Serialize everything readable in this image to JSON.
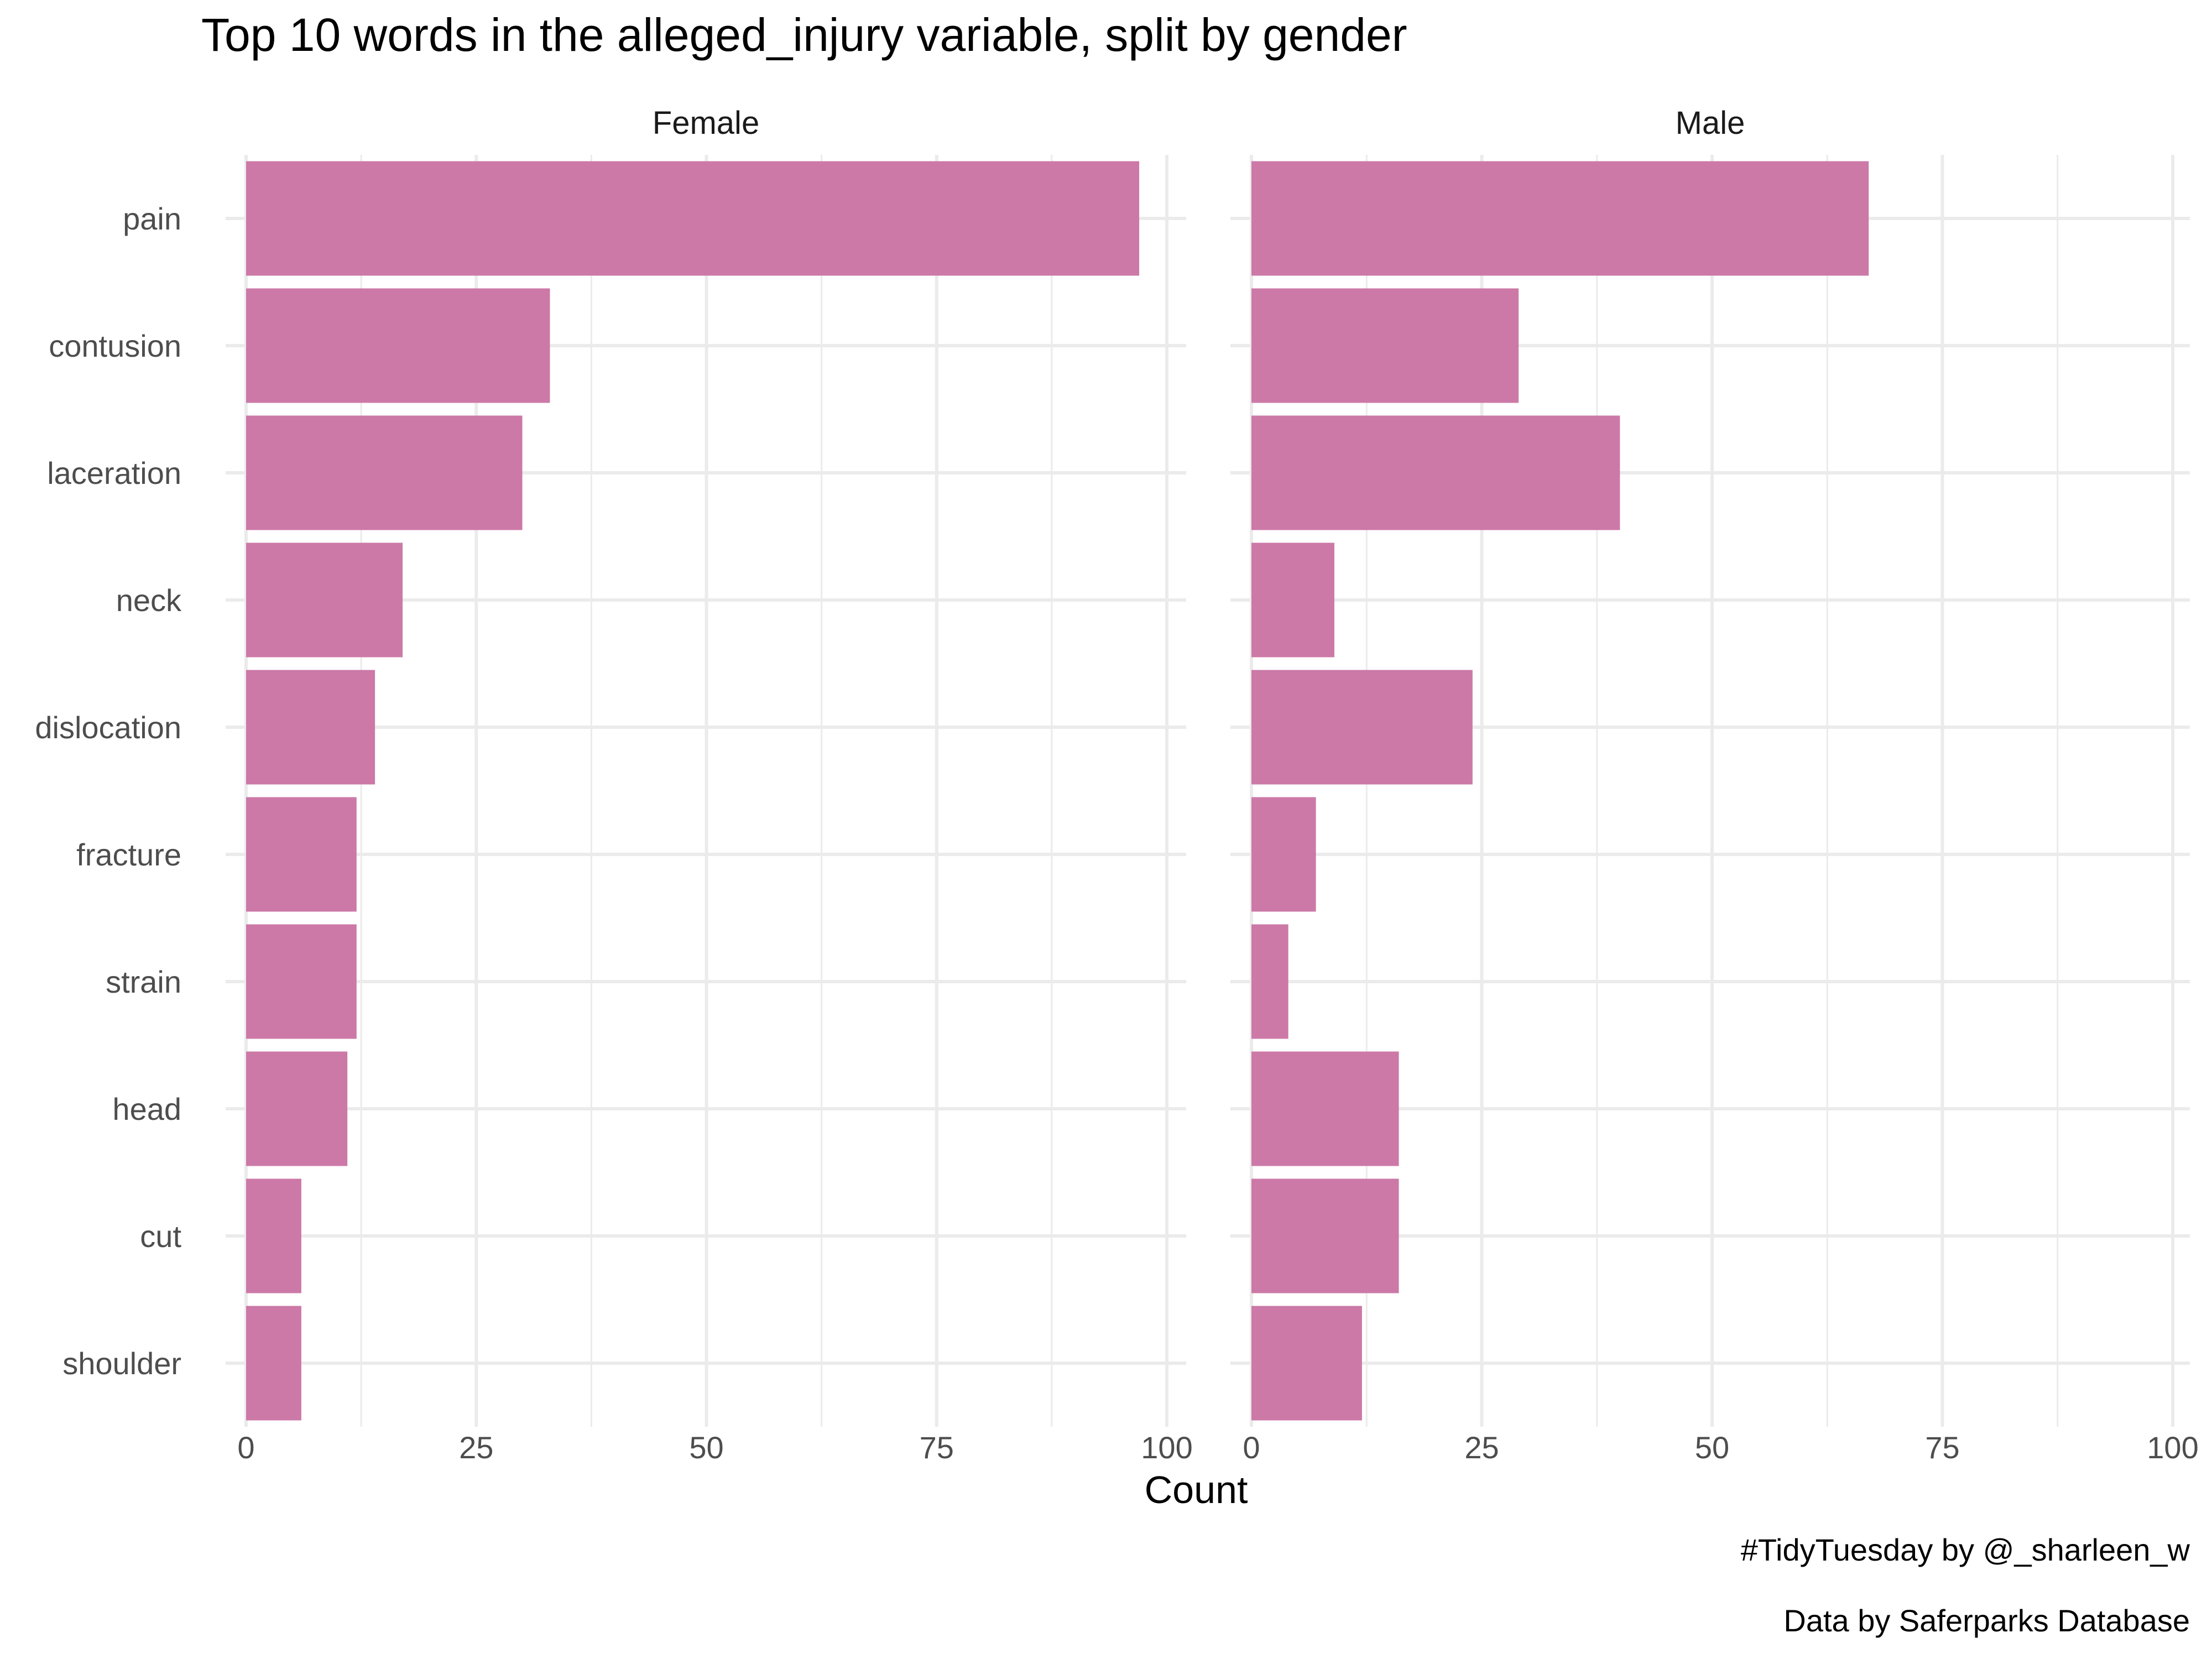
{
  "chart_data": {
    "type": "bar",
    "orientation": "horizontal",
    "title": "Top 10 words in the alleged_injury variable, split by gender",
    "xlabel": "Count",
    "ylabel": "",
    "xlim": [
      0,
      100
    ],
    "x_ticks": [
      "0",
      "25",
      "50",
      "75",
      "100"
    ],
    "grid": true,
    "bar_color": "#cc79a7",
    "categories": [
      "pain",
      "contusion",
      "laceration",
      "neck",
      "dislocation",
      "fracture",
      "strain",
      "head",
      "cut",
      "shoulder"
    ],
    "panels": [
      {
        "label": "Female",
        "values": [
          97,
          33,
          30,
          17,
          14,
          12,
          12,
          11,
          6,
          6
        ]
      },
      {
        "label": "Male",
        "values": [
          67,
          29,
          40,
          9,
          24,
          7,
          4,
          16,
          16,
          12
        ]
      }
    ],
    "caption": [
      "#TidyTuesday by @_sharleen_w",
      "Data by Saferparks Database"
    ]
  }
}
